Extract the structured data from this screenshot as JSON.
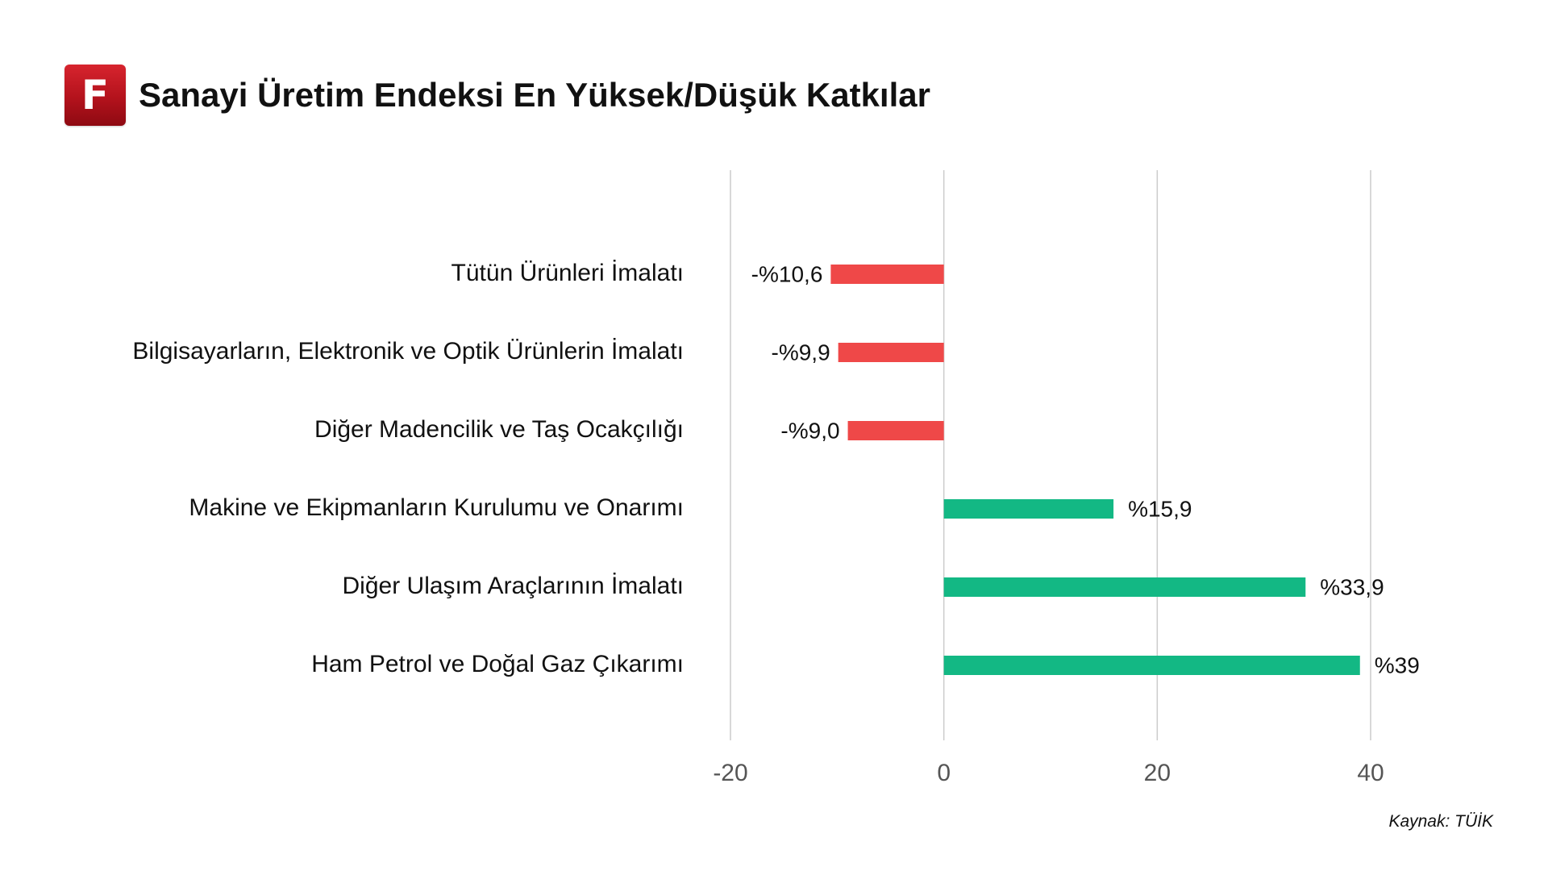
{
  "header": {
    "logo_letter": "F",
    "title": "Sanayi Üretim Endeksi En Yüksek/Düşük Katkılar"
  },
  "source": "Kaynak: TÜİK",
  "colors": {
    "negative": "#ef4848",
    "positive": "#13b884",
    "grid": "#cccccc",
    "logo": "#c8141e"
  },
  "chart_data": {
    "type": "bar",
    "orientation": "horizontal",
    "title": "",
    "xlabel": "",
    "ylabel": "",
    "xlim": [
      -20,
      40
    ],
    "xticks": [
      -20,
      0,
      20,
      40
    ],
    "xtick_labels": [
      "-20",
      "0",
      "20",
      "40"
    ],
    "grid": true,
    "categories": [
      "Tütün Ürünleri İmalatı",
      "Bilgisayarların, Elektronik ve Optik Ürünlerin İmalatı",
      "Diğer Madencilik ve Taş Ocakçılığı",
      "Makine ve Ekipmanların Kurulumu ve Onarımı",
      "Diğer Ulaşım Araçlarının İmalatı",
      "Ham Petrol ve Doğal Gaz Çıkarımı"
    ],
    "values": [
      -10.6,
      -9.9,
      -9.0,
      15.9,
      33.9,
      39
    ],
    "data_labels": [
      "-%10,6",
      "-%9,9",
      "-%9,0",
      "%15,9",
      "%33,9",
      "%39"
    ]
  }
}
